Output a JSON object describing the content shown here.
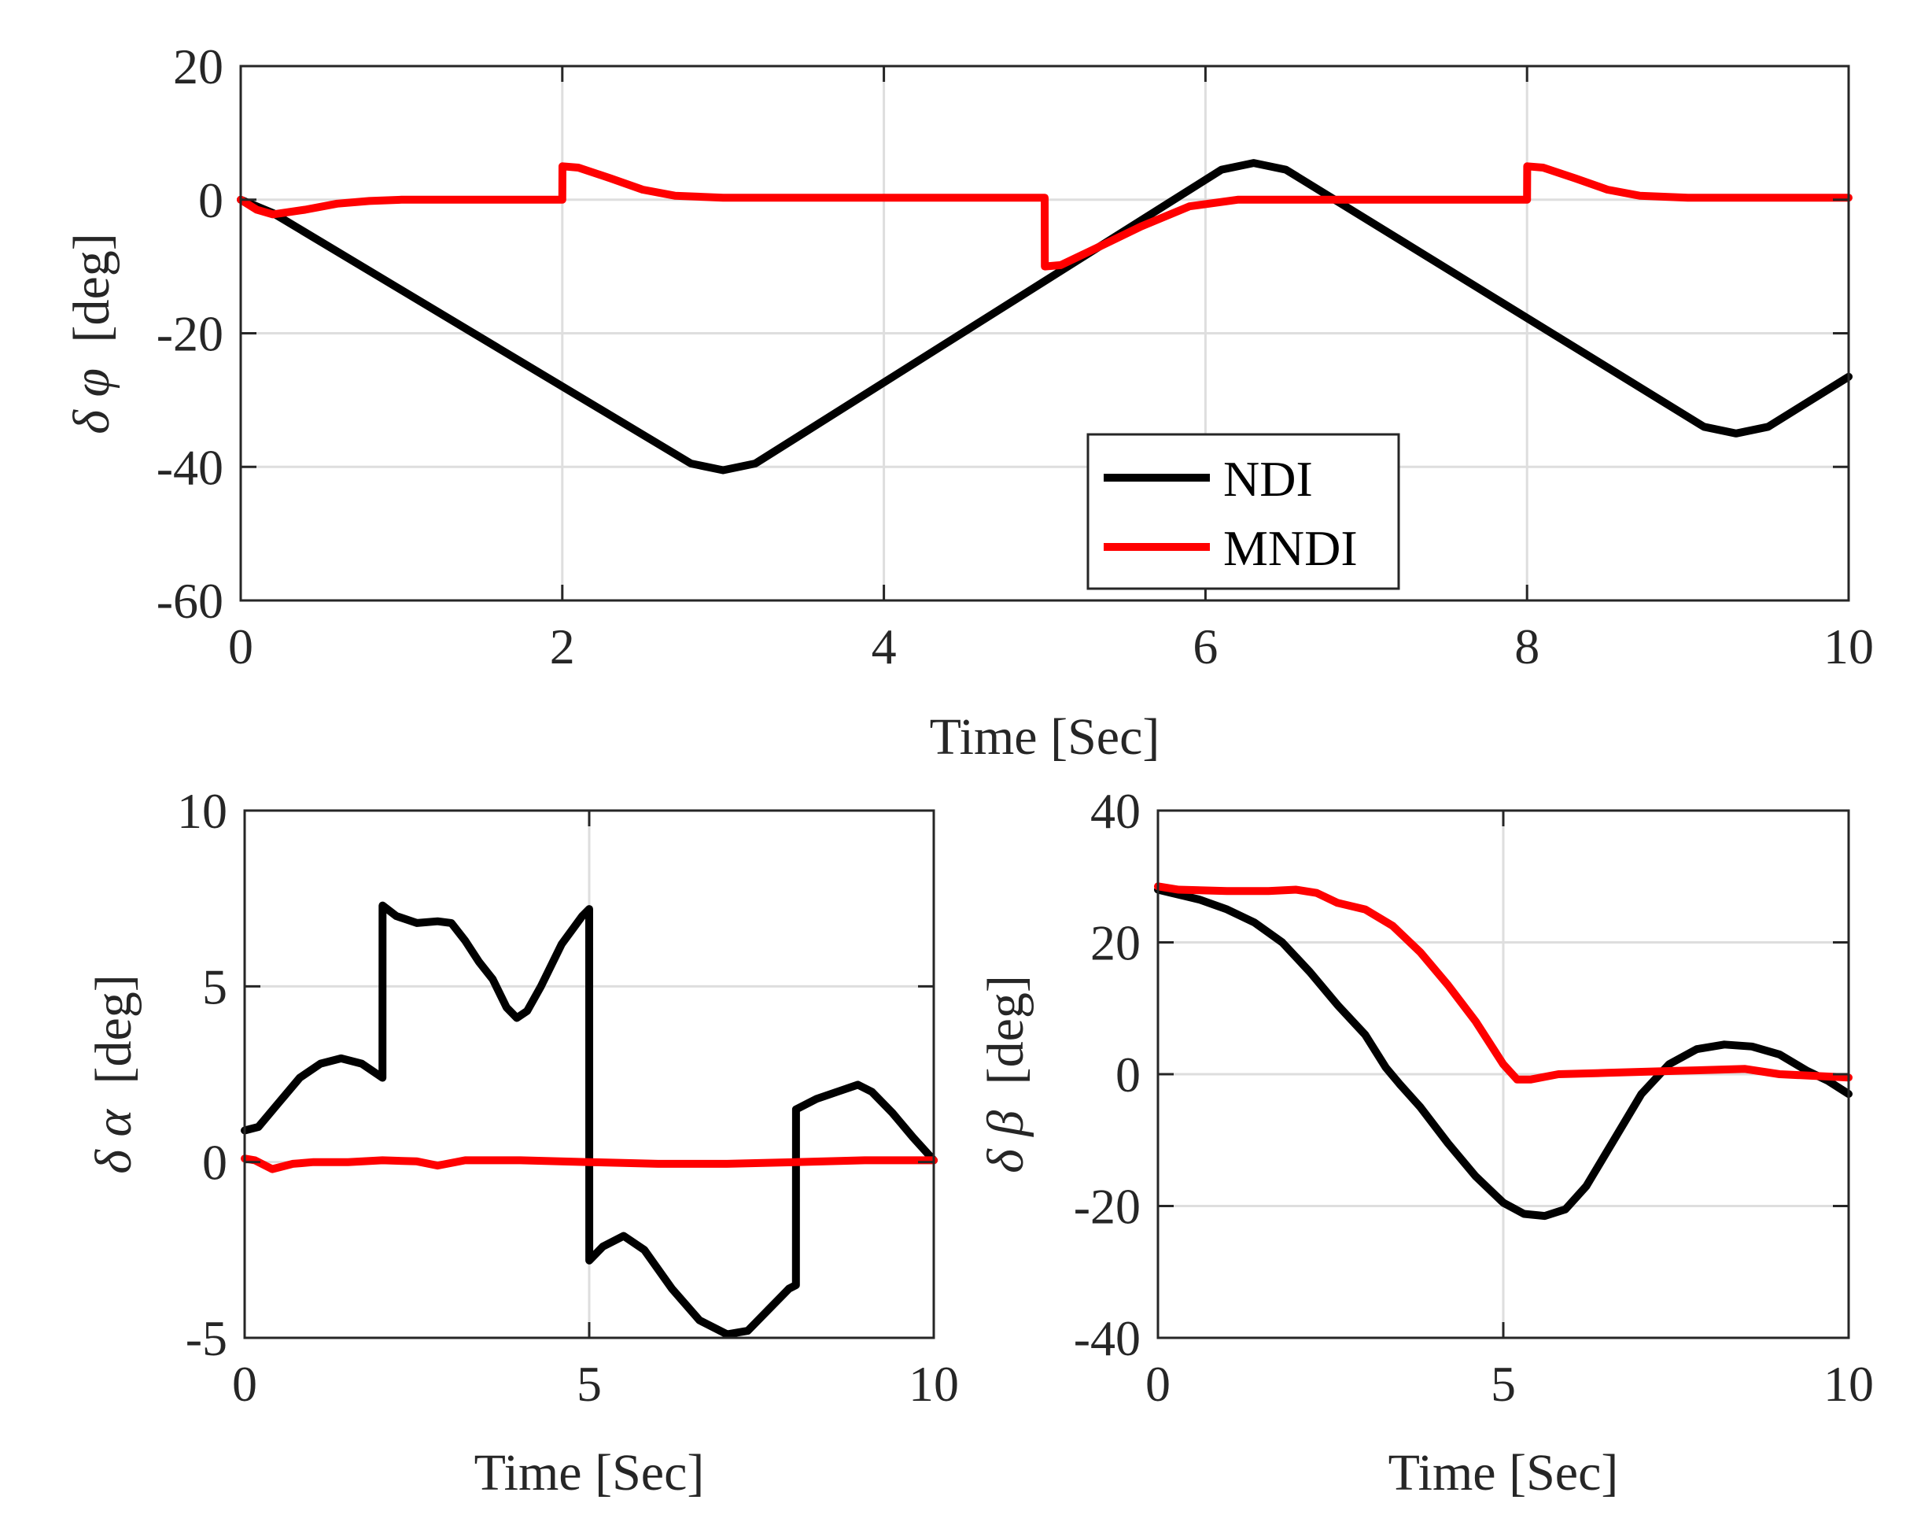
{
  "colors": {
    "NDI": "#000000",
    "MNDI": "#ff0000",
    "grid": "#dedede",
    "axis": "#262626"
  },
  "legend": {
    "entries": [
      "NDI",
      "MNDI"
    ],
    "location": "bottom-center of top panel"
  },
  "chart_data": [
    {
      "id": "phi",
      "type": "line",
      "xlabel": "Time  [Sec]",
      "ylabel_symbol": "δ φ",
      "ylabel_unit": "[deg]",
      "xlim": [
        0,
        10
      ],
      "ylim": [
        -60,
        20
      ],
      "xticks": [
        0,
        2,
        4,
        6,
        8,
        10
      ],
      "xtick_labels": [
        "0",
        "2",
        "4",
        "6",
        "8",
        "10"
      ],
      "yticks": [
        -60,
        -40,
        -20,
        0,
        20
      ],
      "ytick_labels": [
        "-60",
        "-40",
        "-20",
        "0",
        "20"
      ],
      "grid": true,
      "series": [
        {
          "name": "NDI",
          "x": [
            0,
            0.2,
            2.8,
            3.0,
            3.2,
            6.1,
            6.3,
            6.5,
            9.1,
            9.3,
            9.5,
            10.0
          ],
          "y": [
            0,
            -2,
            -39.5,
            -40.5,
            -39.5,
            4.5,
            5.5,
            4.5,
            -34,
            -35,
            -34,
            -26.5
          ]
        },
        {
          "name": "MNDI",
          "x": [
            0,
            0.1,
            0.2,
            0.4,
            0.6,
            0.8,
            1.0,
            2.0,
            2.001,
            2.1,
            2.3,
            2.5,
            2.7,
            3.0,
            5.0,
            5.001,
            5.1,
            5.3,
            5.6,
            5.9,
            6.2,
            8.0,
            8.001,
            8.1,
            8.3,
            8.5,
            8.7,
            9.0,
            10.0
          ],
          "y": [
            0,
            -1.5,
            -2.2,
            -1.5,
            -0.6,
            -0.2,
            0,
            0,
            5,
            4.8,
            3.2,
            1.5,
            0.6,
            0.3,
            0.3,
            -10,
            -9.8,
            -7.5,
            -4,
            -1,
            0,
            0,
            5,
            4.8,
            3.2,
            1.5,
            0.6,
            0.3,
            0.3
          ]
        }
      ]
    },
    {
      "id": "alpha",
      "type": "line",
      "xlabel": "Time  [Sec]",
      "ylabel_symbol": "δ α",
      "ylabel_unit": " [deg]",
      "xlim": [
        0,
        10
      ],
      "ylim": [
        -5,
        10
      ],
      "xticks": [
        0,
        5,
        10
      ],
      "xtick_labels": [
        "0",
        "5",
        "10"
      ],
      "yticks": [
        -5,
        0,
        5,
        10
      ],
      "ytick_labels": [
        "-5",
        "0",
        "5",
        "10"
      ],
      "grid": true,
      "series": [
        {
          "name": "NDI",
          "x": [
            0,
            0.2,
            0.5,
            0.8,
            1.1,
            1.4,
            1.7,
            2.0,
            2.001,
            2.2,
            2.5,
            2.8,
            3.0,
            3.2,
            3.4,
            3.6,
            3.8,
            3.95,
            4.1,
            4.3,
            4.6,
            4.9,
            5.0,
            5.001,
            5.2,
            5.5,
            5.8,
            6.2,
            6.6,
            7.0,
            7.3,
            7.6,
            7.9,
            8.0,
            8.001,
            8.3,
            8.6,
            8.9,
            9.1,
            9.4,
            9.7,
            10.0
          ],
          "y": [
            0.9,
            1.0,
            1.7,
            2.4,
            2.8,
            2.95,
            2.8,
            2.4,
            7.3,
            7.0,
            6.8,
            6.85,
            6.8,
            6.3,
            5.7,
            5.2,
            4.4,
            4.1,
            4.3,
            5.0,
            6.2,
            7.0,
            7.2,
            -2.8,
            -2.4,
            -2.1,
            -2.5,
            -3.6,
            -4.5,
            -4.9,
            -4.8,
            -4.2,
            -3.6,
            -3.5,
            1.5,
            1.8,
            2.0,
            2.2,
            2.0,
            1.4,
            0.7,
            0.05
          ]
        },
        {
          "name": "MNDI",
          "x": [
            0,
            0.15,
            0.4,
            0.7,
            1.0,
            1.5,
            2.0,
            2.5,
            2.8,
            3.2,
            4.0,
            5.0,
            6.0,
            7.0,
            8.0,
            9.0,
            10.0
          ],
          "y": [
            0.1,
            0.05,
            -0.2,
            -0.05,
            0,
            0,
            0.05,
            0.02,
            -0.1,
            0.05,
            0.05,
            0,
            -0.05,
            -0.05,
            0,
            0.05,
            0.05
          ]
        }
      ]
    },
    {
      "id": "beta",
      "type": "line",
      "xlabel": "Time  [Sec]",
      "ylabel_symbol": "δ β",
      "ylabel_unit": " [deg]",
      "xlim": [
        0,
        10
      ],
      "ylim": [
        -40,
        40
      ],
      "xticks": [
        0,
        5,
        10
      ],
      "xtick_labels": [
        "0",
        "5",
        "10"
      ],
      "yticks": [
        -40,
        -20,
        0,
        20,
        40
      ],
      "ytick_labels": [
        "-40",
        "-20",
        "0",
        "20",
        "40"
      ],
      "grid": true,
      "series": [
        {
          "name": "NDI",
          "x": [
            0,
            0.2,
            0.6,
            1.0,
            1.4,
            1.8,
            2.2,
            2.6,
            3.0,
            3.3,
            3.5,
            3.8,
            4.2,
            4.6,
            5.0,
            5.3,
            5.6,
            5.9,
            6.2,
            6.6,
            7.0,
            7.4,
            7.8,
            8.2,
            8.6,
            9.0,
            9.4,
            9.7,
            10.0
          ],
          "y": [
            28,
            27.5,
            26.5,
            25,
            23,
            20,
            15.5,
            10.5,
            6,
            1,
            -1.5,
            -5,
            -10.5,
            -15.5,
            -19.5,
            -21.2,
            -21.5,
            -20.5,
            -17,
            -10,
            -3,
            1.5,
            3.8,
            4.5,
            4.2,
            3,
            0.5,
            -1,
            -3
          ]
        },
        {
          "name": "MNDI",
          "x": [
            0,
            0.3,
            1.0,
            1.6,
            2.0,
            2.3,
            2.6,
            3.0,
            3.4,
            3.8,
            4.2,
            4.6,
            5.0,
            5.2,
            5.4,
            5.8,
            6.5,
            7.5,
            8.5,
            9.0,
            10.0
          ],
          "y": [
            28.5,
            28,
            27.8,
            27.8,
            28,
            27.5,
            26,
            25,
            22.5,
            18.5,
            13.5,
            8,
            1.5,
            -0.8,
            -0.8,
            0,
            0.2,
            0.5,
            0.8,
            0,
            -0.5
          ]
        }
      ]
    }
  ]
}
